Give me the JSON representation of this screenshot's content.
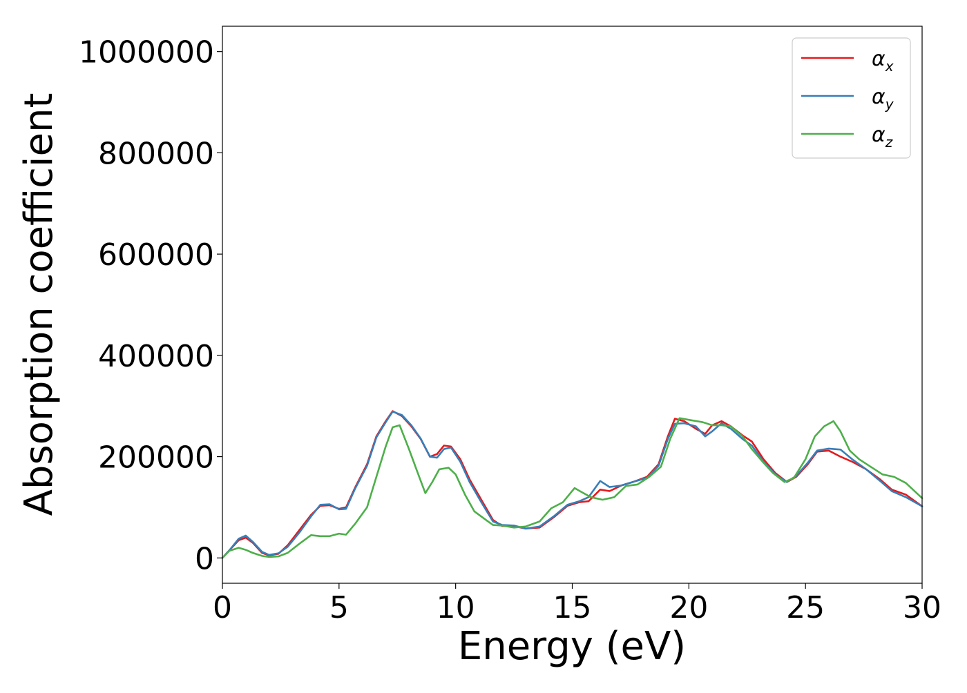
{
  "chart_data": {
    "type": "line",
    "title": "",
    "xlabel": "Energy (eV)",
    "ylabel": "Absorption coefficient",
    "xlim": [
      0,
      30
    ],
    "ylim": [
      -50000,
      1050000
    ],
    "xticks": [
      0,
      5,
      10,
      15,
      20,
      25,
      30
    ],
    "xtick_labels": [
      "0",
      "5",
      "10",
      "15",
      "20",
      "25",
      "30"
    ],
    "yticks": [
      0,
      200000,
      400000,
      600000,
      800000,
      1000000
    ],
    "ytick_labels": [
      "0",
      "200000",
      "400000",
      "600000",
      "800000",
      "1000000"
    ],
    "grid": false,
    "legend_position": "top-right",
    "series": [
      {
        "name": "αx",
        "symbol": "α",
        "subscript": "x",
        "color": "#e41a1c",
        "points": [
          [
            0,
            0
          ],
          [
            0.3,
            15000
          ],
          [
            0.7,
            35000
          ],
          [
            1.0,
            40000
          ],
          [
            1.3,
            30000
          ],
          [
            1.7,
            10000
          ],
          [
            2.0,
            5000
          ],
          [
            2.4,
            8000
          ],
          [
            2.8,
            25000
          ],
          [
            3.3,
            55000
          ],
          [
            3.8,
            85000
          ],
          [
            4.2,
            103000
          ],
          [
            4.6,
            104000
          ],
          [
            5.0,
            97000
          ],
          [
            5.3,
            100000
          ],
          [
            5.7,
            140000
          ],
          [
            6.2,
            185000
          ],
          [
            6.6,
            240000
          ],
          [
            7.0,
            270000
          ],
          [
            7.3,
            290000
          ],
          [
            7.7,
            280000
          ],
          [
            8.1,
            260000
          ],
          [
            8.5,
            235000
          ],
          [
            8.9,
            200000
          ],
          [
            9.2,
            205000
          ],
          [
            9.5,
            222000
          ],
          [
            9.8,
            220000
          ],
          [
            10.2,
            195000
          ],
          [
            10.6,
            155000
          ],
          [
            11.1,
            115000
          ],
          [
            11.6,
            75000
          ],
          [
            12.0,
            63000
          ],
          [
            12.5,
            63000
          ],
          [
            13.0,
            58000
          ],
          [
            13.6,
            60000
          ],
          [
            14.2,
            80000
          ],
          [
            14.8,
            103000
          ],
          [
            15.3,
            110000
          ],
          [
            15.7,
            112000
          ],
          [
            16.2,
            135000
          ],
          [
            16.6,
            132000
          ],
          [
            17.1,
            143000
          ],
          [
            17.6,
            150000
          ],
          [
            18.2,
            160000
          ],
          [
            18.7,
            185000
          ],
          [
            19.1,
            240000
          ],
          [
            19.4,
            275000
          ],
          [
            19.8,
            270000
          ],
          [
            20.3,
            255000
          ],
          [
            20.7,
            245000
          ],
          [
            21.0,
            262000
          ],
          [
            21.4,
            270000
          ],
          [
            21.8,
            260000
          ],
          [
            22.3,
            242000
          ],
          [
            22.7,
            230000
          ],
          [
            23.2,
            195000
          ],
          [
            23.7,
            168000
          ],
          [
            24.2,
            150000
          ],
          [
            24.6,
            160000
          ],
          [
            25.1,
            185000
          ],
          [
            25.5,
            210000
          ],
          [
            26.0,
            212000
          ],
          [
            26.5,
            200000
          ],
          [
            27.0,
            190000
          ],
          [
            27.6,
            175000
          ],
          [
            28.2,
            155000
          ],
          [
            28.7,
            135000
          ],
          [
            29.3,
            125000
          ],
          [
            30,
            102000
          ]
        ]
      },
      {
        "name": "αy",
        "symbol": "α",
        "subscript": "y",
        "color": "#377eb8",
        "points": [
          [
            0,
            0
          ],
          [
            0.3,
            15000
          ],
          [
            0.7,
            38000
          ],
          [
            1.0,
            44000
          ],
          [
            1.3,
            32000
          ],
          [
            1.7,
            12000
          ],
          [
            2.0,
            6000
          ],
          [
            2.4,
            9000
          ],
          [
            2.8,
            22000
          ],
          [
            3.3,
            50000
          ],
          [
            3.8,
            82000
          ],
          [
            4.2,
            105000
          ],
          [
            4.6,
            106000
          ],
          [
            5.0,
            96000
          ],
          [
            5.3,
            97000
          ],
          [
            5.7,
            138000
          ],
          [
            6.2,
            182000
          ],
          [
            6.6,
            238000
          ],
          [
            7.0,
            268000
          ],
          [
            7.3,
            289000
          ],
          [
            7.7,
            282000
          ],
          [
            8.1,
            262000
          ],
          [
            8.5,
            236000
          ],
          [
            8.9,
            200000
          ],
          [
            9.2,
            198000
          ],
          [
            9.5,
            215000
          ],
          [
            9.8,
            218000
          ],
          [
            10.2,
            190000
          ],
          [
            10.6,
            150000
          ],
          [
            11.1,
            110000
          ],
          [
            11.6,
            72000
          ],
          [
            12.0,
            65000
          ],
          [
            12.5,
            64000
          ],
          [
            13.0,
            58000
          ],
          [
            13.6,
            62000
          ],
          [
            14.2,
            82000
          ],
          [
            14.8,
            105000
          ],
          [
            15.3,
            112000
          ],
          [
            15.7,
            120000
          ],
          [
            16.2,
            152000
          ],
          [
            16.6,
            140000
          ],
          [
            17.1,
            143000
          ],
          [
            17.6,
            150000
          ],
          [
            18.2,
            158000
          ],
          [
            18.7,
            182000
          ],
          [
            19.1,
            235000
          ],
          [
            19.4,
            265000
          ],
          [
            19.8,
            266000
          ],
          [
            20.3,
            260000
          ],
          [
            20.7,
            240000
          ],
          [
            21.0,
            250000
          ],
          [
            21.4,
            266000
          ],
          [
            21.8,
            255000
          ],
          [
            22.3,
            235000
          ],
          [
            22.7,
            222000
          ],
          [
            23.2,
            190000
          ],
          [
            23.7,
            165000
          ],
          [
            24.2,
            150000
          ],
          [
            24.6,
            162000
          ],
          [
            25.1,
            188000
          ],
          [
            25.5,
            212000
          ],
          [
            26.0,
            216000
          ],
          [
            26.5,
            214000
          ],
          [
            27.0,
            195000
          ],
          [
            27.6,
            175000
          ],
          [
            28.2,
            152000
          ],
          [
            28.7,
            132000
          ],
          [
            29.3,
            120000
          ],
          [
            30,
            102000
          ]
        ]
      },
      {
        "name": "αz",
        "symbol": "α",
        "subscript": "z",
        "color": "#4daf4a",
        "points": [
          [
            0,
            0
          ],
          [
            0.3,
            14000
          ],
          [
            0.7,
            20000
          ],
          [
            1.0,
            16000
          ],
          [
            1.3,
            10000
          ],
          [
            1.7,
            4000
          ],
          [
            2.0,
            2000
          ],
          [
            2.4,
            3000
          ],
          [
            2.8,
            10000
          ],
          [
            3.3,
            28000
          ],
          [
            3.8,
            45000
          ],
          [
            4.2,
            43000
          ],
          [
            4.6,
            43000
          ],
          [
            5.0,
            48000
          ],
          [
            5.3,
            46000
          ],
          [
            5.7,
            68000
          ],
          [
            6.2,
            100000
          ],
          [
            6.6,
            160000
          ],
          [
            7.0,
            220000
          ],
          [
            7.3,
            258000
          ],
          [
            7.6,
            262000
          ],
          [
            8.0,
            215000
          ],
          [
            8.4,
            165000
          ],
          [
            8.7,
            128000
          ],
          [
            9.0,
            150000
          ],
          [
            9.3,
            175000
          ],
          [
            9.7,
            178000
          ],
          [
            10.0,
            165000
          ],
          [
            10.4,
            125000
          ],
          [
            10.8,
            92000
          ],
          [
            11.3,
            75000
          ],
          [
            11.6,
            65000
          ],
          [
            12.0,
            64000
          ],
          [
            12.5,
            60000
          ],
          [
            13.0,
            62000
          ],
          [
            13.6,
            72000
          ],
          [
            14.1,
            98000
          ],
          [
            14.6,
            110000
          ],
          [
            15.1,
            138000
          ],
          [
            15.4,
            130000
          ],
          [
            15.8,
            120000
          ],
          [
            16.3,
            115000
          ],
          [
            16.8,
            120000
          ],
          [
            17.3,
            142000
          ],
          [
            17.8,
            145000
          ],
          [
            18.3,
            160000
          ],
          [
            18.8,
            180000
          ],
          [
            19.2,
            235000
          ],
          [
            19.6,
            276000
          ],
          [
            20.1,
            272000
          ],
          [
            20.6,
            268000
          ],
          [
            21.0,
            262000
          ],
          [
            21.4,
            262000
          ],
          [
            21.8,
            260000
          ],
          [
            22.3,
            240000
          ],
          [
            22.7,
            215000
          ],
          [
            23.2,
            188000
          ],
          [
            23.6,
            168000
          ],
          [
            24.1,
            150000
          ],
          [
            24.5,
            158000
          ],
          [
            25.0,
            195000
          ],
          [
            25.4,
            240000
          ],
          [
            25.8,
            260000
          ],
          [
            26.2,
            270000
          ],
          [
            26.5,
            250000
          ],
          [
            26.9,
            212000
          ],
          [
            27.3,
            195000
          ],
          [
            27.8,
            180000
          ],
          [
            28.3,
            165000
          ],
          [
            28.8,
            160000
          ],
          [
            29.3,
            148000
          ],
          [
            30,
            118000
          ]
        ]
      }
    ]
  }
}
